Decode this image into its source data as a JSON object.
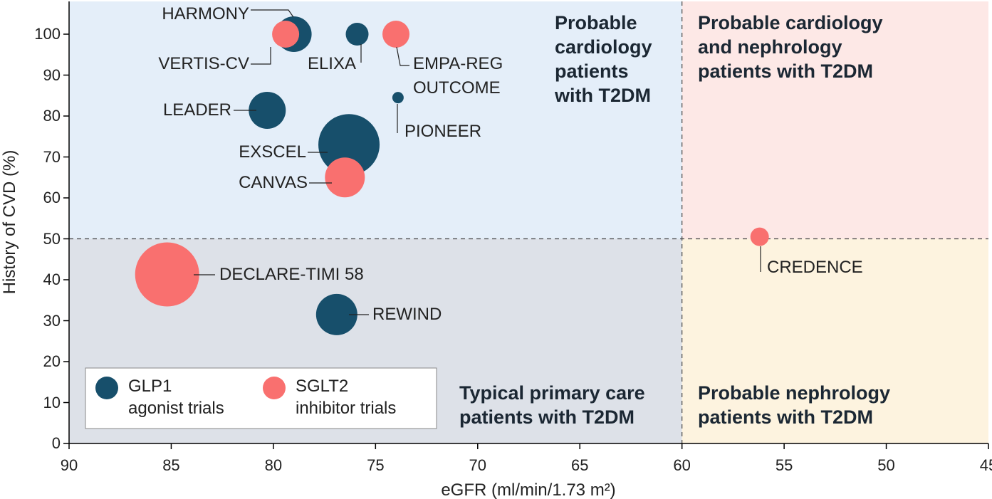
{
  "chart_data": {
    "type": "scatter",
    "x_label": "eGFR (ml/min/1.73 m²)",
    "y_label": "History of CVD (%)",
    "xlim": [
      90,
      45
    ],
    "xticks": [
      90,
      85,
      80,
      75,
      70,
      65,
      60,
      55,
      50,
      45
    ],
    "ylim": [
      0,
      108
    ],
    "yticks": [
      0,
      10,
      20,
      30,
      40,
      50,
      60,
      70,
      80,
      90,
      100
    ],
    "reference_lines": {
      "x": 60,
      "y": 50
    },
    "quadrants": [
      {
        "text": "Probable\ncardiology\npatients\nwith T2DM",
        "color": "#e4eef9"
      },
      {
        "text": "Probable cardiology\nand nephrology\npatients with T2DM",
        "color": "#fde8e6"
      },
      {
        "text": "Typical primary care\npatients with T2DM",
        "color": "#dde1e8"
      },
      {
        "text": "Probable nephrology\npatients with T2DM",
        "color": "#fdf3df"
      }
    ],
    "series": [
      {
        "name": "GLP1\nagonist trials",
        "color": "#174f6b",
        "labels": [
          "HARMONY",
          "ELIXA",
          "PIONEER",
          "LEADER",
          "EXSCEL",
          "REWIND"
        ],
        "x": [
          79.0,
          75.9,
          73.9,
          80.3,
          76.3,
          76.9
        ],
        "values": [
          100,
          100,
          84.5,
          81.4,
          73.0,
          31.5
        ],
        "sizes": [
          5300,
          2170,
          540,
          5730,
          15670,
          7130
        ]
      },
      {
        "name": "SGLT2\ninhibitor trials",
        "color": "#f9706f",
        "labels": [
          "VERTIS-CV",
          "EMPA-REG\nOUTCOME",
          "CANVAS",
          "DECLARE-TIMI 58",
          "CREDENCE"
        ],
        "x": [
          79.4,
          74.0,
          76.5,
          85.2,
          56.2
        ],
        "values": [
          100,
          100,
          65.0,
          41.3,
          50.5
        ],
        "sizes": [
          3060,
          3060,
          6640,
          17160,
          1430
        ]
      }
    ]
  }
}
